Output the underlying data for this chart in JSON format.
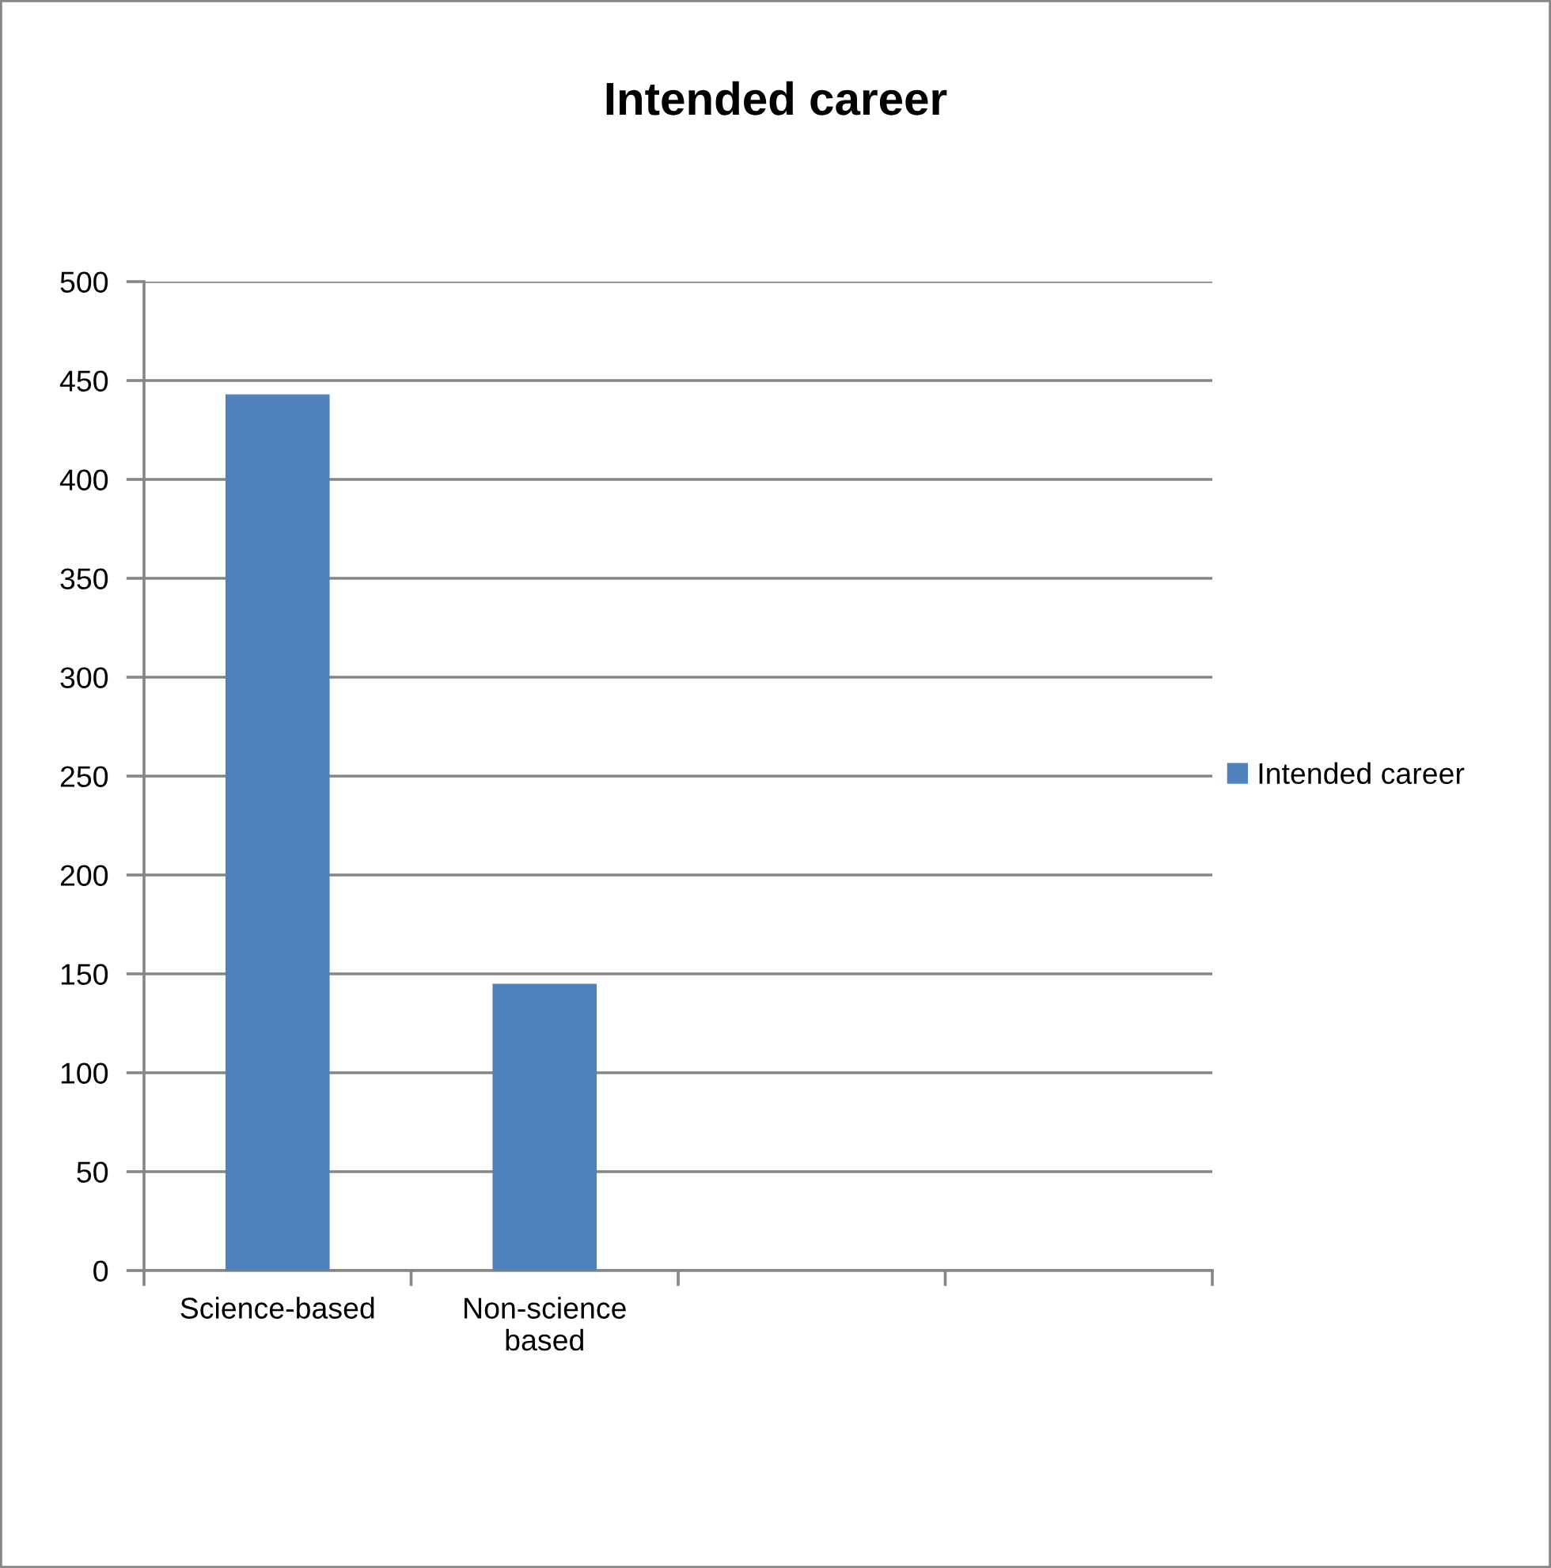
{
  "chart_data": {
    "type": "bar",
    "title": "Intended career",
    "categories": [
      "Science-based",
      "Non-science\nbased",
      null,
      null
    ],
    "series": [
      {
        "name": "Intended career",
        "color": "#4f81bd",
        "values": [
          443,
          145,
          null,
          null
        ]
      }
    ],
    "ylim": [
      0,
      500
    ],
    "yticks": [
      0,
      50,
      100,
      150,
      200,
      250,
      300,
      350,
      400,
      450,
      500
    ],
    "grid": "y",
    "legend": "right"
  }
}
